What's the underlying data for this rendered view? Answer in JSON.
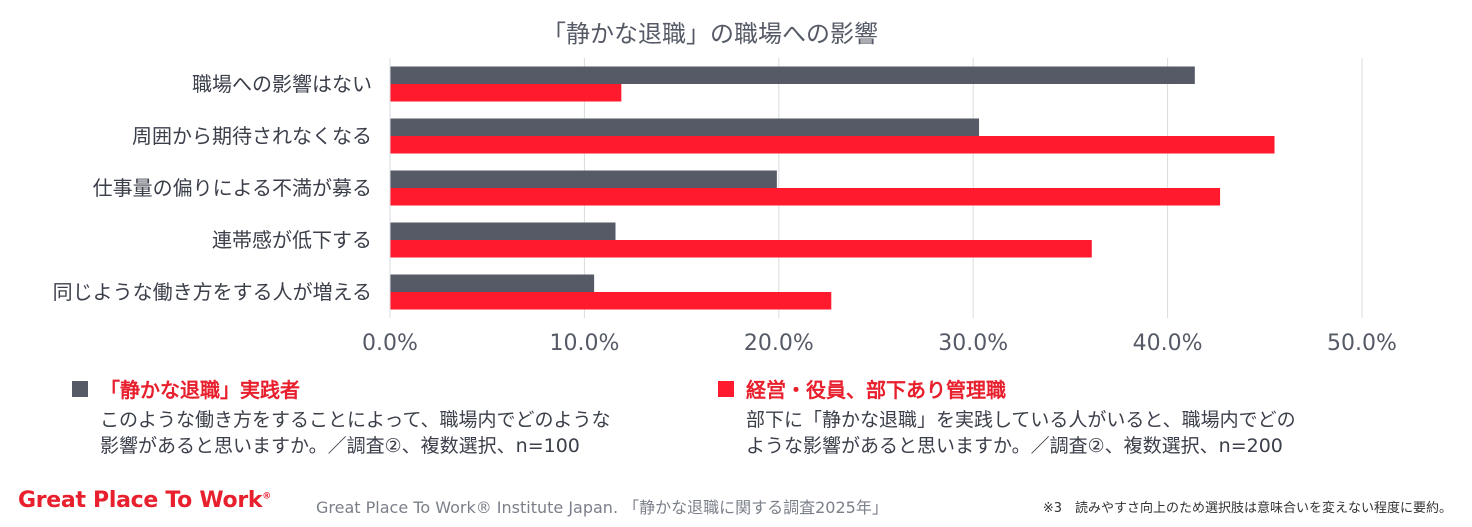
{
  "colors": {
    "series1": "#555a66",
    "series2": "#ff1a2e",
    "grid": "#d9dbe0",
    "axis_text": "#555a66"
  },
  "chart_data": {
    "type": "bar",
    "orientation": "horizontal",
    "title": "「静かな退職」の職場への影響",
    "categories": [
      "職場への影響はない",
      "周囲から期待されなくなる",
      "仕事量の偏りによる不満が募る",
      "連帯感が低下する",
      "同じような働き方をする人が増える"
    ],
    "series": [
      {
        "name": "「静かな退職」実践者",
        "values": [
          41.4,
          30.3,
          19.9,
          11.6,
          10.5
        ]
      },
      {
        "name": "経営・役員、部下あり管理職",
        "values": [
          11.9,
          45.5,
          42.7,
          36.1,
          22.7
        ]
      }
    ],
    "xlim": [
      0,
      50
    ],
    "xticks": [
      "0.0%",
      "10.0%",
      "20.0%",
      "30.0%",
      "40.0%",
      "50.0%"
    ],
    "grid": true,
    "legend_position": "bottom"
  },
  "legend": {
    "left": {
      "label": "「静かな退職」実践者",
      "desc_line1": "このような働き方をすることによって、職場内でどのような",
      "desc_line2": "影響があると思いますか。／調査②、複数選択、n=100"
    },
    "right": {
      "label": "経営・役員、部下あり管理職",
      "desc_line1": "部下に「静かな退職」を実践している人がいると、職場内でどの",
      "desc_line2": "ような影響があると思いますか。／調査②、複数選択、n=200"
    }
  },
  "footer": {
    "logo": "Great Place To Work",
    "logo_mark": "®",
    "source": "Great Place To Work® Institute Japan. 「静かな退職に関する調査2025年」",
    "note": "※3　読みやすさ向上のため選択肢は意味合いを変えない程度に要約。"
  }
}
